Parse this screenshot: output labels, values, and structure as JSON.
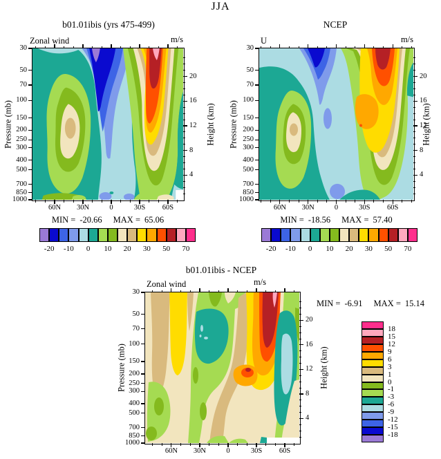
{
  "title": "JJA",
  "palette": {
    "purple": "#9B7AD6",
    "darkblue": "#0A0ACF",
    "royal": "#3D64E6",
    "cornflower": "#7F9BEB",
    "palecyan": "#ACDCE3",
    "teal": "#1CA894",
    "ltgreen": "#A5DB52",
    "olive": "#84BA1E",
    "cream": "#F2E5BE",
    "tan": "#D9BA7E",
    "yellow": "#FFDC00",
    "orange": "#FFA800",
    "orangered": "#FF5000",
    "brick": "#B52025",
    "pink": "#FFA8BE",
    "magenta": "#FF2E8C",
    "white": "#FFFFFF",
    "axis": "#000000"
  },
  "axes": {
    "pressure_label": "Pressure (mb)",
    "height_label": "Height (km)",
    "pressure_ticks": [
      "30",
      "50",
      "70",
      "100",
      "150",
      "200",
      "250",
      "300",
      "400",
      "500",
      "700",
      "850",
      "1000"
    ],
    "height_ticks": [
      "20",
      "16",
      "12",
      "8",
      "4"
    ],
    "lat_ticks": [
      "60N",
      "30N",
      "0",
      "30S",
      "60S"
    ]
  },
  "panels": [
    {
      "id": "model",
      "title": "b01.01ibis (yrs 475-499)",
      "corner_label": "Zonal wind",
      "units": "m/s",
      "min_label": "MIN =",
      "min": "-20.66",
      "max_label": "MAX =",
      "max": "65.06"
    },
    {
      "id": "ncep",
      "title": "NCEP",
      "corner_label": "U",
      "units": "m/s",
      "min_label": "MIN =",
      "min": "-18.56",
      "max_label": "MAX =",
      "max": "57.40"
    },
    {
      "id": "diff",
      "title": "b01.01ibis - NCEP",
      "corner_label": "Zonal wind",
      "units": "m/s",
      "min_label": "MIN =",
      "min": "-6.91",
      "max_label": "MAX =",
      "max": "15.14"
    }
  ],
  "colorbars": {
    "horizontal": {
      "labels": [
        "-20",
        "-10",
        "0",
        "10",
        "20",
        "30",
        "50",
        "70"
      ],
      "label_boundaries": [
        1,
        3,
        5,
        7,
        9,
        11,
        13,
        15
      ],
      "colors_low_to_high": [
        "purple",
        "darkblue",
        "royal",
        "cornflower",
        "palecyan",
        "teal",
        "ltgreen",
        "olive",
        "cream",
        "tan",
        "yellow",
        "orange",
        "orangered",
        "brick",
        "pink",
        "magenta"
      ]
    },
    "vertical": {
      "labels_top_to_bottom": [
        "18",
        "15",
        "12",
        "9",
        "6",
        "3",
        "1",
        "0",
        "-1",
        "-3",
        "-6",
        "-9",
        "-12",
        "-15",
        "-18"
      ]
    }
  },
  "chart_data": [
    {
      "type": "heatmap",
      "title": "b01.01ibis (yrs 475-499)",
      "subtitle": "Zonal wind",
      "units": "m/s",
      "x_ticks": [
        "60N",
        "30N",
        "0",
        "30S",
        "60S"
      ],
      "y_ticks_pressure_mb": [
        30,
        50,
        70,
        100,
        150,
        200,
        250,
        300,
        400,
        500,
        700,
        850,
        1000
      ],
      "right_axis_height_km": [
        20,
        16,
        12,
        8,
        4
      ],
      "contour_levels": [
        -20,
        -15,
        -10,
        -5,
        0,
        5,
        10,
        15,
        20,
        25,
        30,
        40,
        50,
        60,
        70
      ],
      "min": -20.66,
      "max": 65.06,
      "summary": "NH westerly jet ~25-30 m/s near 45N/200mb; tropical easterlies (min) aloft near 10-20N/30mb; strong SH winter jet >60 m/s near 45S above 70mb"
    },
    {
      "type": "heatmap",
      "title": "NCEP",
      "subtitle": "U",
      "units": "m/s",
      "x_ticks": [
        "60N",
        "30N",
        "0",
        "30S",
        "60S"
      ],
      "y_ticks_pressure_mb": [
        30,
        50,
        70,
        100,
        150,
        200,
        250,
        300,
        400,
        500,
        700,
        850,
        1000
      ],
      "right_axis_height_km": [
        20,
        16,
        12,
        8,
        4
      ],
      "contour_levels": [
        -20,
        -15,
        -10,
        -5,
        0,
        5,
        10,
        15,
        20,
        25,
        30,
        40,
        50,
        60,
        70
      ],
      "min": -18.56,
      "max": 57.4,
      "summary": "Similar structure to model: NH jet ~25 m/s near 45N/200mb, easterlies aloft in tropics, SH jet max ~57 m/s near 50S upper levels"
    },
    {
      "type": "heatmap",
      "title": "b01.01ibis - NCEP",
      "subtitle": "Zonal wind",
      "units": "m/s",
      "x_ticks": [
        "60N",
        "30N",
        "0",
        "30S",
        "60S"
      ],
      "y_ticks_pressure_mb": [
        30,
        50,
        70,
        100,
        150,
        200,
        250,
        300,
        400,
        500,
        700,
        850,
        1000
      ],
      "right_axis_height_km": [
        20,
        16,
        12,
        8,
        4
      ],
      "contour_levels": [
        -18,
        -15,
        -12,
        -9,
        -6,
        -3,
        -1,
        0,
        1,
        3,
        6,
        9,
        12,
        15,
        18
      ],
      "min": -6.91,
      "max": 15.14,
      "summary": "Positive bias column >12 m/s near 40-50S aloft; negative bias (teal, < -3) near 20-30N upper levels and near 60S mid-levels; weak positive bias band near 50-60N"
    }
  ]
}
